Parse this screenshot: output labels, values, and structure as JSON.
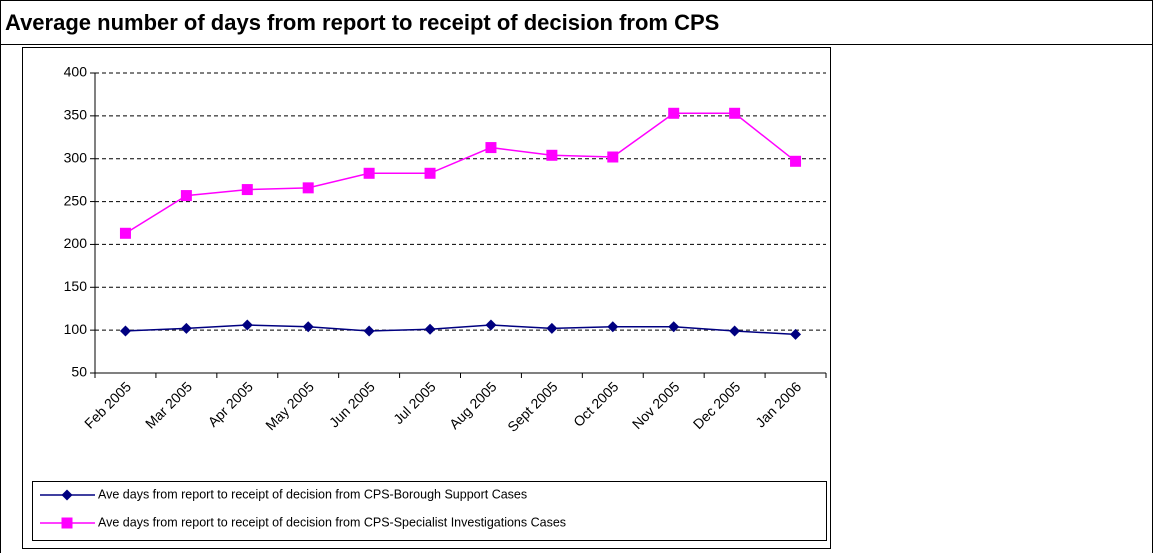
{
  "chart_data": {
    "type": "line",
    "title": "Average number of days from report to receipt of decision from CPS",
    "categories": [
      "Feb 2005",
      "Mar 2005",
      "Apr 2005",
      "May 2005",
      "Jun 2005",
      "Jul 2005",
      "Aug 2005",
      "Sept 2005",
      "Oct 2005",
      "Nov 2005",
      "Dec 2005",
      "Jan 2006"
    ],
    "series": [
      {
        "name": "Ave days from report to receipt of decision from CPS-Borough Support Cases",
        "color": "#000080",
        "marker": "diamond",
        "values": [
          99,
          102,
          106,
          104,
          99,
          101,
          106,
          102,
          104,
          104,
          99,
          95
        ]
      },
      {
        "name": "Ave days from report to receipt of decision from CPS-Specialist Investigations Cases",
        "color": "#ff00ff",
        "marker": "square",
        "values": [
          213,
          257,
          264,
          266,
          283,
          283,
          313,
          304,
          302,
          353,
          353,
          297
        ]
      }
    ],
    "ylim": [
      50,
      400
    ],
    "yticks": [
      50,
      100,
      150,
      200,
      250,
      300,
      350,
      400
    ],
    "grid": true,
    "legend": "bottom"
  }
}
